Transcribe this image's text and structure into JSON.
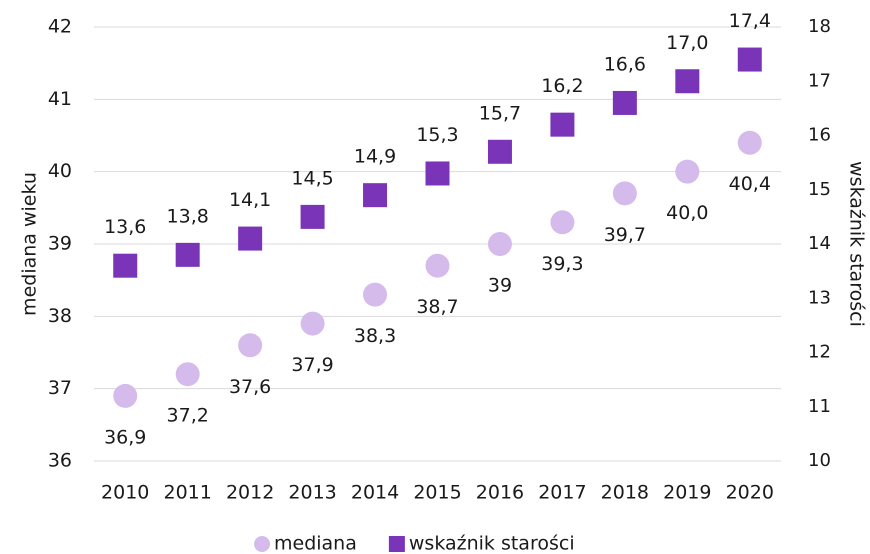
{
  "chart_data": {
    "type": "scatter",
    "y_label": "mediana wieku",
    "y2_label": "wskaźnik starości",
    "categories": [
      "2010",
      "2011",
      "2012",
      "2013",
      "2014",
      "2015",
      "2016",
      "2017",
      "2018",
      "2019",
      "2020"
    ],
    "series": [
      {
        "name": "mediana",
        "color": "#d5bbec",
        "marker": "circle",
        "values": [
          36.9,
          37.2,
          37.6,
          37.9,
          38.3,
          38.7,
          39,
          39.3,
          39.7,
          40.0,
          40.4
        ],
        "value_labels": [
          "36,9",
          "37,2",
          "37,6",
          "37,9",
          "38,3",
          "38,7",
          "39",
          "39,3",
          "39,7",
          "40,0",
          "40,4"
        ]
      },
      {
        "name": "wskaźnik starości",
        "color": "#7a34b8",
        "marker": "square",
        "axis": "y2",
        "values": [
          13.6,
          13.8,
          14.1,
          14.5,
          14.9,
          15.3,
          15.7,
          16.2,
          16.6,
          17.0,
          17.4
        ],
        "value_labels": [
          "13,6",
          "13,8",
          "14,1",
          "14,5",
          "14,9",
          "15,3",
          "15,7",
          "16,2",
          "16,6",
          "17,0",
          "17,4"
        ]
      }
    ],
    "ylim": [
      36,
      42
    ],
    "yticks": [
      36,
      37,
      38,
      39,
      40,
      41,
      42
    ],
    "y2lim": [
      10,
      18
    ],
    "y2ticks": [
      10,
      11,
      12,
      13,
      14,
      15,
      16,
      17,
      18
    ],
    "grid": true,
    "legend": "bottom"
  }
}
